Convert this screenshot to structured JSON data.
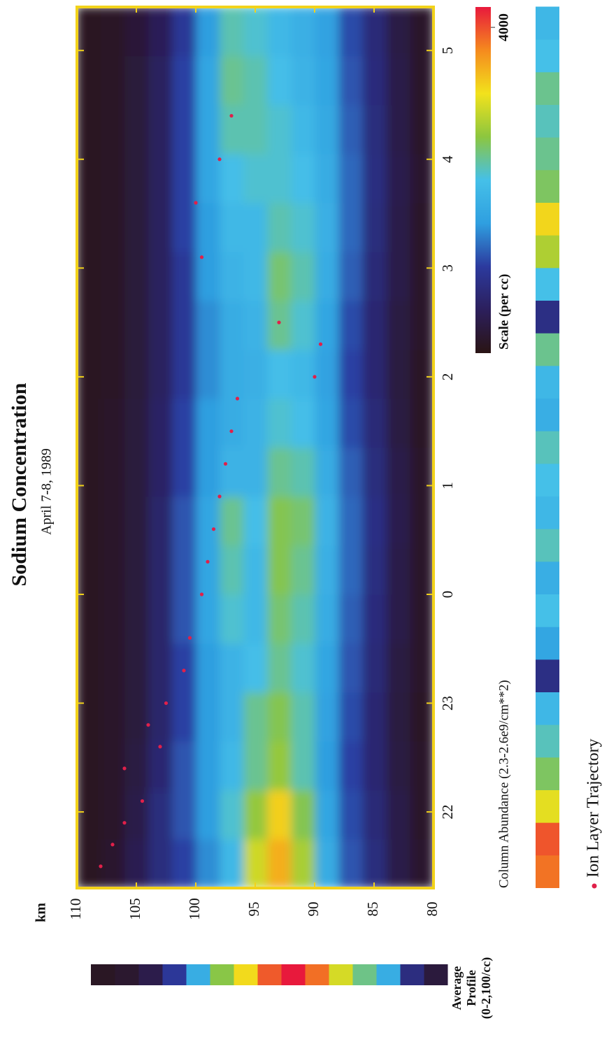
{
  "chart_data": {
    "type": "heatmap",
    "title": "Sodium Concentration",
    "subtitle": "April 7-8, 1989",
    "y_label": "km",
    "x_bins": [
      21.3,
      21.75,
      22.2,
      22.65,
      23.1,
      23.55,
      24.0,
      24.45,
      24.9,
      25.35,
      25.8,
      26.25,
      26.7,
      27.15,
      27.6,
      28.05,
      28.5,
      28.95,
      29.4
    ],
    "y_bins": [
      80,
      82,
      84,
      86,
      88,
      90,
      92,
      94,
      96,
      98,
      100,
      102,
      104,
      106,
      108,
      110
    ],
    "z": [
      [
        200,
        180,
        160,
        150,
        160,
        170,
        180,
        170,
        160,
        150,
        150,
        160,
        170,
        180,
        200,
        180,
        170,
        160
      ],
      [
        400,
        380,
        350,
        330,
        350,
        380,
        400,
        420,
        380,
        350,
        330,
        350,
        380,
        400,
        420,
        400,
        380,
        360
      ],
      [
        800,
        750,
        700,
        700,
        750,
        780,
        820,
        850,
        800,
        750,
        700,
        700,
        750,
        800,
        820,
        800,
        780,
        760
      ],
      [
        1200,
        1150,
        1100,
        1150,
        1200,
        1250,
        1300,
        1300,
        1250,
        1150,
        1100,
        1150,
        1250,
        1300,
        1300,
        1250,
        1200,
        1150
      ],
      [
        1800,
        1700,
        1600,
        1650,
        1700,
        1800,
        1850,
        1900,
        1800,
        1700,
        1650,
        1700,
        1800,
        1850,
        1800,
        1750,
        1700,
        1650
      ],
      [
        2800,
        2600,
        2300,
        2300,
        2200,
        2300,
        2400,
        2500,
        2300,
        2100,
        2000,
        2200,
        2300,
        2200,
        2100,
        2000,
        1900,
        1850
      ],
      [
        3500,
        3300,
        2700,
        2600,
        2400,
        2500,
        2600,
        2600,
        2400,
        2200,
        2100,
        2400,
        2500,
        2300,
        2200,
        2200,
        2100,
        2000
      ],
      [
        3000,
        2700,
        2400,
        2400,
        2100,
        2000,
        2000,
        2100,
        1900,
        1900,
        1850,
        1900,
        2000,
        2000,
        2200,
        2300,
        2300,
        2200
      ],
      [
        2000,
        2200,
        2000,
        1900,
        1900,
        2200,
        2300,
        2400,
        1900,
        1800,
        1800,
        1800,
        1900,
        2000,
        2100,
        2300,
        2400,
        2300
      ],
      [
        1500,
        1600,
        1600,
        1600,
        1600,
        1700,
        1700,
        1700,
        1600,
        1600,
        1500,
        1500,
        1600,
        1600,
        1700,
        1700,
        1700,
        1600
      ],
      [
        1100,
        1200,
        1200,
        1100,
        1100,
        1200,
        1200,
        1200,
        1100,
        1100,
        1000,
        1000,
        1000,
        1100,
        1100,
        1100,
        1100,
        1000
      ],
      [
        800,
        800,
        700,
        650,
        650,
        650,
        650,
        650,
        600,
        600,
        550,
        550,
        550,
        550,
        550,
        550,
        550,
        500
      ],
      [
        450,
        400,
        350,
        300,
        300,
        300,
        300,
        300,
        300,
        300,
        280,
        280,
        280,
        280,
        280,
        280,
        280,
        260
      ],
      [
        200,
        180,
        170,
        160,
        160,
        160,
        160,
        160,
        160,
        160,
        150,
        150,
        150,
        150,
        150,
        150,
        150,
        150
      ],
      [
        120,
        120,
        120,
        120,
        120,
        120,
        120,
        120,
        120,
        120,
        120,
        120,
        120,
        120,
        120,
        120,
        120,
        120
      ]
    ],
    "colors": [
      "#2a1414",
      "#2c1f5c",
      "#2c3a9e",
      "#2f9fe0",
      "#45c0e8",
      "#8cc63f",
      "#f2e21c",
      "#f58a1e",
      "#e8193c"
    ],
    "zlim": [
      0,
      4250
    ],
    "zticks": [
      4000
    ],
    "colorbar_label": "Scale (per cc)",
    "xlim": [
      21.3,
      29.4
    ],
    "xticks": [
      22,
      23,
      {
        "value": 24,
        "label": "0"
      },
      {
        "value": 25,
        "label": "1"
      },
      {
        "value": 26,
        "label": "2"
      },
      {
        "value": 27,
        "label": "3"
      },
      {
        "value": 28,
        "label": "4"
      },
      {
        "value": 29,
        "label": "5"
      }
    ],
    "ylim": [
      80,
      110
    ],
    "yticks": [
      110,
      105,
      100,
      95,
      90,
      85,
      80
    ],
    "frame_color": "#f2d21a",
    "column_abundance": {
      "label": "Column Abundance (2.3-2.6e9/cm**2)",
      "bins": [
        21.3,
        21.6,
        21.9,
        22.2,
        22.5,
        22.8,
        23.1,
        23.4,
        23.7,
        24.0,
        24.3,
        24.6,
        24.9,
        25.2,
        25.5,
        25.8,
        26.1,
        26.4,
        26.7,
        27.0,
        27.3,
        27.6,
        27.9,
        28.2,
        28.5,
        28.8,
        29.1,
        29.4
      ],
      "values": [
        2.57,
        2.58,
        2.52,
        2.48,
        2.46,
        2.44,
        2.36,
        2.42,
        2.45,
        2.43,
        2.46,
        2.44,
        2.45,
        2.46,
        2.43,
        2.44,
        2.47,
        2.36,
        2.45,
        2.5,
        2.53,
        2.48,
        2.47,
        2.46,
        2.47,
        2.45,
        2.44
      ],
      "clim": [
        2.3,
        2.6
      ]
    },
    "average_profile": {
      "label": [
        "Average",
        "Profile",
        "(0-2,100/cc)"
      ],
      "values": [
        150,
        400,
        900,
        1200,
        1500,
        1900,
        2100,
        1950,
        1600,
        1300,
        900,
        500,
        200,
        100,
        60
      ],
      "clim": [
        0,
        2100
      ]
    },
    "trajectory": {
      "name": "Ion Layer Trajectory",
      "color": "#e0204a",
      "x": [
        21.5,
        21.7,
        21.9,
        22.1,
        22.4,
        22.6,
        22.8,
        23.0,
        23.3,
        23.6,
        24.0,
        24.3,
        24.6,
        24.9,
        25.2,
        25.5,
        25.8,
        26.0,
        26.3,
        26.5,
        27.1,
        27.6,
        28.0,
        28.4
      ],
      "y": [
        108,
        107,
        106,
        104.5,
        106,
        103,
        104,
        102.5,
        101,
        100.5,
        99.5,
        99,
        98.5,
        98,
        97.5,
        97,
        96.5,
        90,
        89.5,
        93,
        99.5,
        100,
        98,
        97
      ]
    }
  }
}
